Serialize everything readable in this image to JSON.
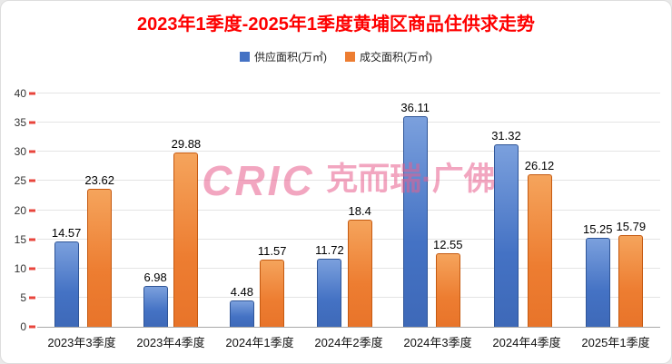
{
  "title": "2023年1季度-2025年1季度黄埔区商品住供求走势",
  "watermark": {
    "logo": "CRIC",
    "text": "克而瑞·广佛"
  },
  "colors": {
    "title": "#fe0000",
    "supply": "#4472c4",
    "deal": "#ed7d31",
    "axis_tick": "#e8453c"
  },
  "chart_data": {
    "type": "bar",
    "title": "2023年1季度-2025年1季度黄埔区商品住供求走势",
    "categories": [
      "2023年3季度",
      "2023年4季度",
      "2024年1季度",
      "2024年2季度",
      "2024年3季度",
      "2024年4季度",
      "2025年1季度"
    ],
    "series": [
      {
        "name": "供应面积(万㎡)",
        "color": "#4472c4",
        "values": [
          14.57,
          6.98,
          4.48,
          11.72,
          36.11,
          31.32,
          15.25
        ]
      },
      {
        "name": "成交面积(万㎡)",
        "color": "#ed7d31",
        "values": [
          23.62,
          29.88,
          11.57,
          18.4,
          12.55,
          26.12,
          15.79
        ]
      }
    ],
    "xlabel": "",
    "ylabel": "",
    "ylim": [
      0,
      40
    ],
    "yticks": [
      0,
      5,
      10,
      15,
      20,
      25,
      30,
      35,
      40
    ],
    "grid": true,
    "legend_position": "top",
    "data_labels": true
  }
}
